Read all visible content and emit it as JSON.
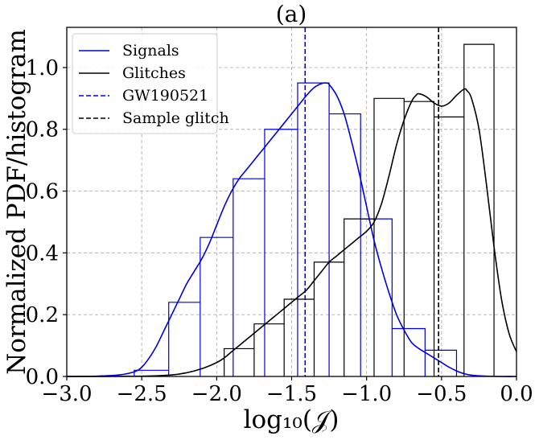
{
  "chart_data": {
    "type": "line",
    "title": "(a)",
    "xlabel": "log₁₀(𝒥)",
    "ylabel": "Normalized PDF/histogram",
    "xlim": [
      -3.0,
      0.0
    ],
    "ylim": [
      0.0,
      1.13
    ],
    "grid": true,
    "legend_position": "top-left",
    "x_ticks": [
      -3.0,
      -2.5,
      -2.0,
      -1.5,
      -1.0,
      -0.5,
      0.0
    ],
    "x_tick_labels": [
      "−3.0",
      "−2.5",
      "−2.0",
      "−1.5",
      "−1.0",
      "−0.5",
      "0.0"
    ],
    "y_ticks": [
      0.0,
      0.2,
      0.4,
      0.6,
      0.8,
      1.0
    ],
    "y_tick_labels": [
      "0.0",
      "0.2",
      "0.4",
      "0.6",
      "0.8",
      "1.0"
    ],
    "legend": [
      {
        "label": "Signals",
        "color": "#0000dd",
        "style": "solid"
      },
      {
        "label": "Glitches",
        "color": "#000000",
        "style": "solid"
      },
      {
        "label": "GW190521",
        "color": "#0000dd",
        "style": "dashed"
      },
      {
        "label": "Sample glitch",
        "color": "#000000",
        "style": "dashed"
      }
    ],
    "histograms": [
      {
        "name": "Signals histogram",
        "color": "#0000dd",
        "edges": [
          -2.55,
          -2.32,
          -2.11,
          -1.89,
          -1.68,
          -1.46,
          -1.25,
          -1.04,
          -0.83,
          -0.61,
          -0.4
        ],
        "values": [
          0.02,
          0.24,
          0.45,
          0.64,
          0.8,
          0.95,
          0.85,
          0.51,
          0.155,
          0.085
        ]
      },
      {
        "name": "Glitches histogram",
        "color": "#000000",
        "edges": [
          -1.95,
          -1.75,
          -1.55,
          -1.35,
          -1.15,
          -0.95,
          -0.75,
          -0.55,
          -0.35,
          -0.15
        ],
        "values": [
          0.09,
          0.17,
          0.25,
          0.37,
          0.51,
          0.9,
          0.89,
          0.84,
          1.075
        ]
      }
    ],
    "series": [
      {
        "name": "Signals",
        "color": "#0000dd",
        "x": [
          -3.0,
          -2.8,
          -2.65,
          -2.55,
          -2.5,
          -2.45,
          -2.4,
          -2.35,
          -2.3,
          -2.25,
          -2.2,
          -2.15,
          -2.1,
          -2.05,
          -2.0,
          -1.95,
          -1.9,
          -1.85,
          -1.8,
          -1.75,
          -1.7,
          -1.65,
          -1.6,
          -1.55,
          -1.5,
          -1.45,
          -1.4,
          -1.35,
          -1.3,
          -1.27,
          -1.25,
          -1.2,
          -1.15,
          -1.1,
          -1.05,
          -1.0,
          -0.95,
          -0.9,
          -0.85,
          -0.8,
          -0.75,
          -0.7,
          -0.65,
          -0.6,
          -0.55,
          -0.5,
          -0.45,
          -0.4,
          -0.35,
          -0.3,
          -0.25,
          -0.2,
          -0.1,
          0.0
        ],
        "y": [
          0.0,
          0.001,
          0.005,
          0.015,
          0.03,
          0.06,
          0.1,
          0.15,
          0.2,
          0.25,
          0.3,
          0.34,
          0.38,
          0.43,
          0.49,
          0.55,
          0.6,
          0.64,
          0.67,
          0.7,
          0.73,
          0.76,
          0.79,
          0.82,
          0.85,
          0.88,
          0.91,
          0.935,
          0.948,
          0.95,
          0.945,
          0.91,
          0.85,
          0.76,
          0.66,
          0.55,
          0.44,
          0.35,
          0.27,
          0.2,
          0.15,
          0.11,
          0.09,
          0.075,
          0.06,
          0.045,
          0.03,
          0.018,
          0.009,
          0.004,
          0.002,
          0.001,
          0.0,
          0.0
        ]
      },
      {
        "name": "Glitches",
        "color": "#000000",
        "x": [
          -3.0,
          -2.5,
          -2.3,
          -2.2,
          -2.1,
          -2.0,
          -1.95,
          -1.9,
          -1.85,
          -1.8,
          -1.75,
          -1.7,
          -1.65,
          -1.6,
          -1.55,
          -1.5,
          -1.45,
          -1.4,
          -1.35,
          -1.3,
          -1.25,
          -1.2,
          -1.15,
          -1.1,
          -1.05,
          -1.0,
          -0.95,
          -0.9,
          -0.85,
          -0.8,
          -0.75,
          -0.7,
          -0.67,
          -0.65,
          -0.6,
          -0.55,
          -0.5,
          -0.45,
          -0.4,
          -0.35,
          -0.33,
          -0.3,
          -0.25,
          -0.2,
          -0.15,
          -0.1,
          -0.05,
          0.0
        ],
        "y": [
          0.0,
          0.001,
          0.005,
          0.012,
          0.025,
          0.045,
          0.06,
          0.08,
          0.1,
          0.12,
          0.14,
          0.16,
          0.18,
          0.2,
          0.22,
          0.24,
          0.26,
          0.28,
          0.31,
          0.34,
          0.37,
          0.39,
          0.41,
          0.43,
          0.45,
          0.47,
          0.5,
          0.56,
          0.65,
          0.75,
          0.83,
          0.89,
          0.91,
          0.915,
          0.905,
          0.885,
          0.875,
          0.885,
          0.91,
          0.93,
          0.925,
          0.9,
          0.8,
          0.62,
          0.42,
          0.25,
          0.14,
          0.08
        ]
      }
    ],
    "vlines": [
      {
        "name": "GW190521",
        "x": -1.41,
        "color": "#0000dd",
        "style": "dashed"
      },
      {
        "name": "Sample glitch",
        "x": -0.52,
        "color": "#000000",
        "style": "dashed"
      }
    ]
  }
}
